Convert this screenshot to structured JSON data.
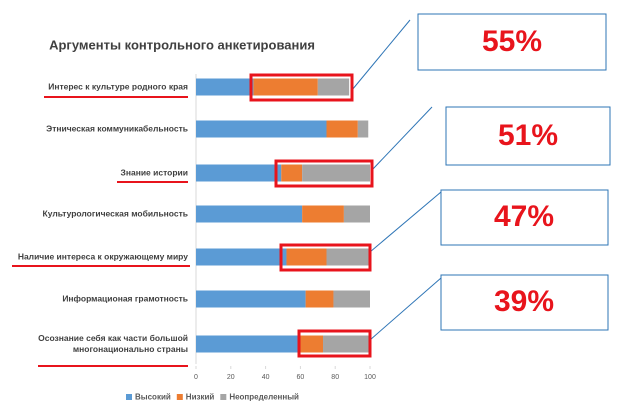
{
  "chart_data": {
    "type": "stacked_barh",
    "title": "Аргументы контрольного анкетирования",
    "categories": [
      "Интерес к культуре родного края",
      "Этническая коммуникабельность",
      "Знание истории",
      "Культурологическая мобильность",
      "Наличие интереса к окружающему миру",
      "Информационая грамотность",
      "Осознание себя как части большой многонационально страны"
    ],
    "series": [
      {
        "name": "Высокий",
        "color": "#5b9bd5",
        "values": [
          33,
          75,
          49,
          61,
          52,
          63,
          60
        ]
      },
      {
        "name": "Низкий",
        "color": "#ed7d31",
        "values": [
          37,
          18,
          12,
          24,
          23,
          16,
          13
        ]
      },
      {
        "name": "Неопределенный",
        "color": "#a5a5a5",
        "values": [
          18,
          6,
          39,
          15,
          25,
          21,
          27
        ]
      }
    ],
    "xlim": [
      0,
      100
    ],
    "xticks": [
      0,
      20,
      40,
      60,
      80,
      100
    ],
    "legend": "bottom",
    "annotations": [
      "55%",
      "51%",
      "47%",
      "39%"
    ]
  }
}
